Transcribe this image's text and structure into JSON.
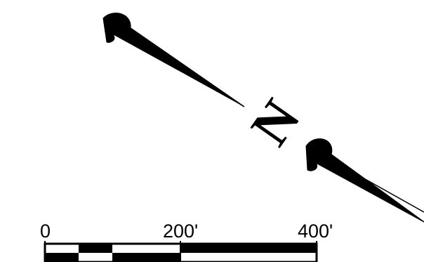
{
  "north_arrow": {
    "letter": "N",
    "color": "#000000"
  },
  "scale_bar": {
    "labels": [
      "0",
      "200'",
      "400'"
    ],
    "color": "#000000",
    "background": "#ffffff"
  }
}
